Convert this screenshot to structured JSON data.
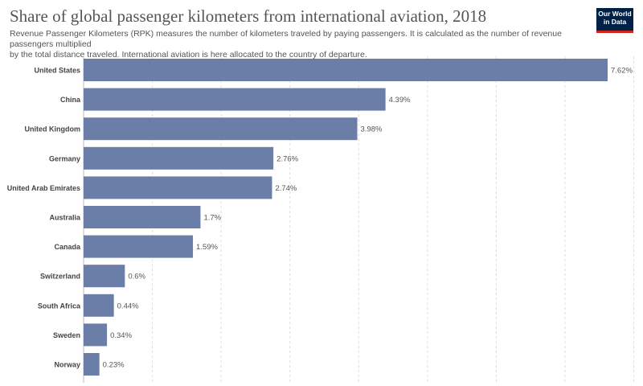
{
  "header": {
    "title": "Share of global passenger kilometers from international aviation, 2018",
    "subtitle_line1": "Revenue Passenger Kilometers (RPK) measures the number of kilometers traveled by paying passengers. It is calculated as the number of revenue passengers multiplied",
    "subtitle_line2": "by the total distance traveled. International aviation is here allocated to the country of departure.",
    "logo_line1": "Our World",
    "logo_line2": "in Data"
  },
  "colors": {
    "bar": "#6a7ea7",
    "grid": "#dddddd",
    "logo_bg": "#002147",
    "logo_accent": "#ce261e"
  },
  "chart_data": {
    "type": "bar",
    "orientation": "horizontal",
    "grid": true,
    "value_suffix": "%",
    "xlim": [
      0,
      8.0
    ],
    "categories": [
      "United States",
      "China",
      "United Kingdom",
      "Germany",
      "United Arab Emirates",
      "Australia",
      "Canada",
      "Switzerland",
      "South Africa",
      "Sweden",
      "Norway"
    ],
    "values": [
      7.62,
      4.39,
      3.98,
      2.76,
      2.74,
      1.7,
      1.59,
      0.6,
      0.44,
      0.34,
      0.23
    ],
    "value_labels": [
      "7.62%",
      "4.39%",
      "3.98%",
      "2.76%",
      "2.74%",
      "1.7%",
      "1.59%",
      "0.6%",
      "0.44%",
      "0.34%",
      "0.23%"
    ]
  }
}
